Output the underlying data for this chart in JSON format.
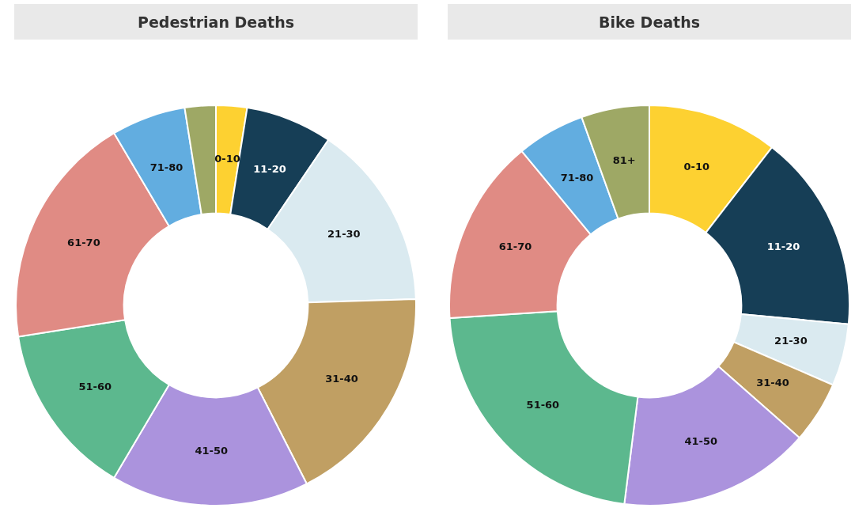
{
  "chart_data": [
    {
      "type": "donut",
      "title": "Pedestrian Deaths",
      "categories": [
        "0-10",
        "11-20",
        "21-30",
        "31-40",
        "41-50",
        "51-60",
        "61-70",
        "71-80",
        null
      ],
      "values": [
        2.5,
        7,
        15,
        18,
        16,
        14,
        19,
        6,
        2.5
      ],
      "colors": [
        "#fdd131",
        "#163e56",
        "#daeaf0",
        "#c09f63",
        "#ab93dd",
        "#5cb88e",
        "#e08b84",
        "#62ade0",
        "#9ea865"
      ],
      "legend": false
    },
    {
      "type": "donut",
      "title": "Bike Deaths",
      "categories": [
        "0-10",
        "11-20",
        "21-30",
        "31-40",
        "41-50",
        "51-60",
        "61-70",
        "71-80",
        "81+"
      ],
      "values": [
        10.5,
        16,
        5,
        5,
        15.5,
        22,
        15,
        5.5,
        5.5
      ],
      "colors": [
        "#fdd131",
        "#163e56",
        "#daeaf0",
        "#c09f63",
        "#ab93dd",
        "#5cb88e",
        "#e08b84",
        "#62ade0",
        "#9ea865"
      ],
      "legend": false
    }
  ]
}
